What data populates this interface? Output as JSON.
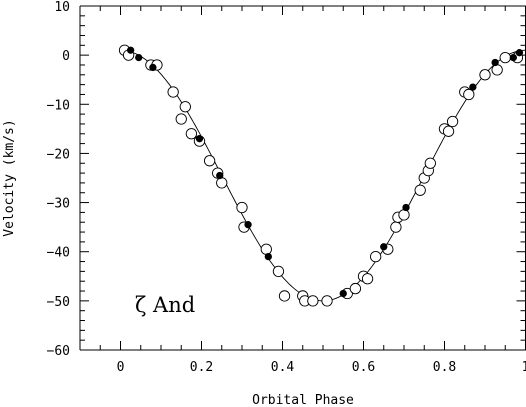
{
  "chart_data": {
    "type": "scatter",
    "xlabel": "Orbital Phase",
    "ylabel": "Velocity (km/s)",
    "annotation": "ζ And",
    "xlim": [
      -0.1,
      1.0
    ],
    "ylim": [
      -60,
      10
    ],
    "xticks": [
      0,
      0.2,
      0.4,
      0.6,
      0.8,
      1
    ],
    "xtick_labels": [
      "0",
      "0.2",
      "0.4",
      "0.6",
      "0.8",
      "1"
    ],
    "yticks": [
      10,
      0,
      -10,
      -20,
      -30,
      -40,
      -50,
      -60
    ],
    "ytick_labels": [
      "10",
      "0",
      "−10",
      "−20",
      "−30",
      "−40",
      "−50",
      "−60"
    ],
    "grid": false,
    "series": [
      {
        "marker": "open-circle",
        "points": [
          [
            0.01,
            1.0
          ],
          [
            0.02,
            0.0
          ],
          [
            0.075,
            -2.0
          ],
          [
            0.09,
            -2.0
          ],
          [
            0.13,
            -7.5
          ],
          [
            0.15,
            -13.0
          ],
          [
            0.16,
            -10.5
          ],
          [
            0.175,
            -16.0
          ],
          [
            0.195,
            -17.5
          ],
          [
            0.22,
            -21.5
          ],
          [
            0.24,
            -24.0
          ],
          [
            0.25,
            -26.0
          ],
          [
            0.3,
            -31.0
          ],
          [
            0.305,
            -35.0
          ],
          [
            0.36,
            -39.5
          ],
          [
            0.39,
            -44.0
          ],
          [
            0.405,
            -49.0
          ],
          [
            0.45,
            -49.0
          ],
          [
            0.455,
            -50.0
          ],
          [
            0.475,
            -50.0
          ],
          [
            0.51,
            -50.0
          ],
          [
            0.56,
            -48.5
          ],
          [
            0.58,
            -47.5
          ],
          [
            0.6,
            -45.0
          ],
          [
            0.61,
            -45.5
          ],
          [
            0.63,
            -41.0
          ],
          [
            0.66,
            -39.5
          ],
          [
            0.68,
            -35.0
          ],
          [
            0.685,
            -33.0
          ],
          [
            0.7,
            -32.5
          ],
          [
            0.74,
            -27.5
          ],
          [
            0.75,
            -25.0
          ],
          [
            0.76,
            -23.5
          ],
          [
            0.765,
            -22.0
          ],
          [
            0.8,
            -15.0
          ],
          [
            0.81,
            -15.5
          ],
          [
            0.82,
            -13.5
          ],
          [
            0.85,
            -7.5
          ],
          [
            0.86,
            -8.0
          ],
          [
            0.9,
            -4.0
          ],
          [
            0.93,
            -3.0
          ],
          [
            0.95,
            -0.5
          ],
          [
            0.98,
            -0.5
          ]
        ]
      },
      {
        "marker": "filled-circle",
        "points": [
          [
            0.025,
            1.0
          ],
          [
            0.045,
            -0.5
          ],
          [
            0.08,
            -2.5
          ],
          [
            0.195,
            -17.0
          ],
          [
            0.245,
            -24.5
          ],
          [
            0.315,
            -34.5
          ],
          [
            0.365,
            -41.0
          ],
          [
            0.55,
            -48.5
          ],
          [
            0.65,
            -39.0
          ],
          [
            0.705,
            -31.0
          ],
          [
            0.87,
            -6.5
          ],
          [
            0.925,
            -1.5
          ],
          [
            0.97,
            -0.5
          ],
          [
            0.985,
            0.5
          ]
        ]
      }
    ],
    "fit_curve": {
      "type": "orbital-velocity",
      "gamma": -24.5,
      "semi_amplitude": 25.5,
      "phase_of_minimum": 0.5
    }
  }
}
